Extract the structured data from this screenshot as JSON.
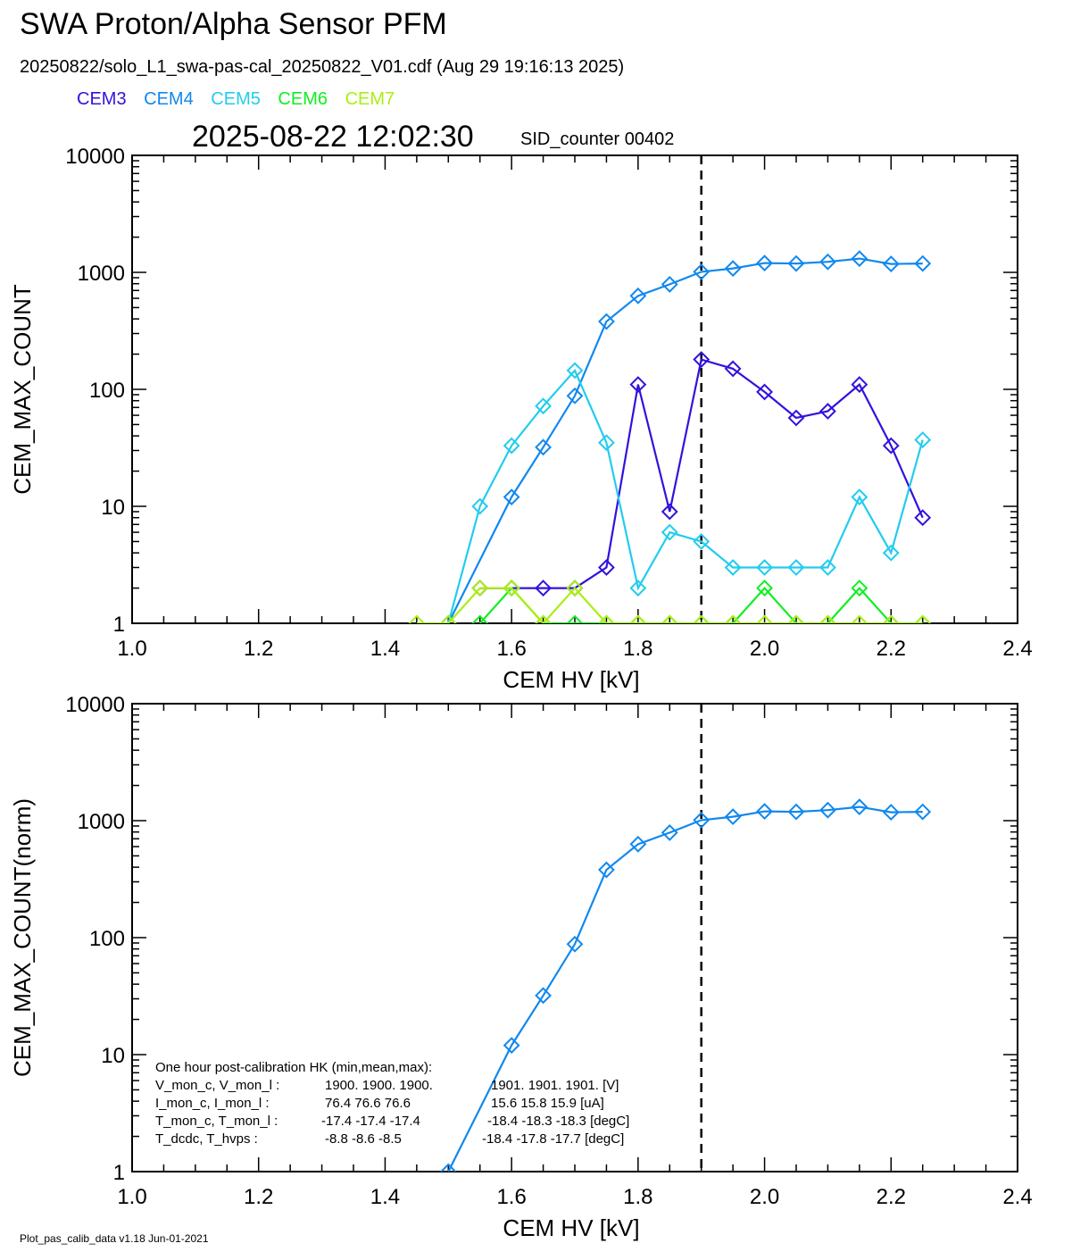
{
  "header": {
    "title": "SWA Proton/Alpha Sensor PFM",
    "subtitle": "20250822/solo_L1_swa-pas-cal_20250822_V01.cdf  (Aug 29 19:16:13 2025)",
    "timestamp": "2025-08-22 12:02:30",
    "sid_counter": "SID_counter 00402"
  },
  "legend": [
    {
      "name": "CEM3",
      "color": "#3311dd"
    },
    {
      "name": "CEM4",
      "color": "#1188ee"
    },
    {
      "name": "CEM5",
      "color": "#22ccee"
    },
    {
      "name": "CEM6",
      "color": "#11ee22"
    },
    {
      "name": "CEM7",
      "color": "#aaee11"
    }
  ],
  "hk_box": {
    "title": "One hour post-calibration HK (min,mean,max):",
    "rows": [
      {
        "label": "V_mon_c, V_mon_l :",
        "c": "1900.  1900.  1900.",
        "l": "1901.  1901.  1901. [V]"
      },
      {
        "label": "I_mon_c,  I_mon_l :",
        "c": "76.4   76.6   76.6",
        "l": "15.6   15.8   15.9  [uA]"
      },
      {
        "label": "T_mon_c, T_mon_l :",
        "c": "-17.4  -17.4  -17.4",
        "l": "-18.4  -18.3  -18.3  [degC]"
      },
      {
        "label": "T_dcdc,    T_hvps :",
        "c": "-8.8   -8.6   -8.5",
        "l": "-18.4  -17.8  -17.7  [degC]"
      }
    ]
  },
  "footer": "Plot_pas_calib_data v1.18 Jun-01-2021",
  "chart_data": [
    {
      "type": "line",
      "xlabel": "CEM HV [kV]",
      "ylabel": "CEM_MAX_COUNT",
      "xlim": [
        1.0,
        2.4
      ],
      "ylim": [
        1,
        10000
      ],
      "yscale": "log",
      "x_ticks": [
        "1.0",
        "1.2",
        "1.4",
        "1.6",
        "1.8",
        "2.0",
        "2.2",
        "2.4"
      ],
      "y_ticks": [
        "1",
        "10",
        "100",
        "1000",
        "10000"
      ],
      "vline": 1.9,
      "marker": "diamond",
      "series": [
        {
          "name": "CEM3",
          "color": "#3311dd",
          "x": [
            1.55,
            1.6,
            1.65,
            1.7,
            1.75,
            1.8,
            1.85,
            1.9,
            1.95,
            2.0,
            2.05,
            2.1,
            2.15,
            2.2,
            2.25
          ],
          "y": [
            2,
            2,
            2,
            2,
            3,
            110,
            9,
            180,
            150,
            95,
            57,
            65,
            110,
            33,
            8
          ]
        },
        {
          "name": "CEM4",
          "color": "#1188ee",
          "x": [
            1.5,
            1.6,
            1.65,
            1.7,
            1.75,
            1.8,
            1.85,
            1.9,
            1.95,
            2.0,
            2.05,
            2.1,
            2.15,
            2.2,
            2.25
          ],
          "y": [
            1,
            12,
            32,
            88,
            380,
            630,
            790,
            1010,
            1080,
            1200,
            1190,
            1230,
            1310,
            1180,
            1190
          ]
        },
        {
          "name": "CEM5",
          "color": "#22ccee",
          "x": [
            1.5,
            1.55,
            1.6,
            1.65,
            1.7,
            1.75,
            1.8,
            1.85,
            1.9,
            1.95,
            2.0,
            2.05,
            2.1,
            2.15,
            2.2,
            2.25
          ],
          "y": [
            1,
            10,
            33,
            72,
            145,
            35,
            2,
            6,
            5,
            3,
            3,
            3,
            3,
            12,
            4,
            37
          ]
        },
        {
          "name": "CEM6",
          "color": "#11ee22",
          "x": [
            1.55,
            1.6,
            1.65,
            1.7,
            1.75,
            1.8,
            1.85,
            1.9,
            1.95,
            2.0,
            2.05,
            2.1,
            2.15,
            2.2,
            2.25
          ],
          "y": [
            1,
            2,
            1,
            1,
            1,
            1,
            1,
            1,
            1,
            2,
            1,
            1,
            2,
            1,
            1
          ]
        },
        {
          "name": "CEM7",
          "color": "#aaee11",
          "x": [
            1.45,
            1.5,
            1.55,
            1.6,
            1.65,
            1.7,
            1.75,
            1.8,
            1.85,
            1.9,
            1.95,
            2.0,
            2.05,
            2.1,
            2.15,
            2.2,
            2.25
          ],
          "y": [
            1,
            1,
            2,
            2,
            1,
            2,
            1,
            1,
            1,
            1,
            1,
            1,
            1,
            1,
            1,
            1,
            1
          ]
        }
      ]
    },
    {
      "type": "line",
      "xlabel": "CEM HV [kV]",
      "ylabel": "CEM_MAX_COUNT(norm)",
      "xlim": [
        1.0,
        2.4
      ],
      "ylim": [
        1,
        10000
      ],
      "yscale": "log",
      "x_ticks": [
        "1.0",
        "1.2",
        "1.4",
        "1.6",
        "1.8",
        "2.0",
        "2.2",
        "2.4"
      ],
      "y_ticks": [
        "1",
        "10",
        "100",
        "1000",
        "10000"
      ],
      "vline": 1.9,
      "marker": "diamond",
      "series": [
        {
          "name": "CEM4",
          "color": "#1188ee",
          "x": [
            1.5,
            1.6,
            1.65,
            1.7,
            1.75,
            1.8,
            1.85,
            1.9,
            1.95,
            2.0,
            2.05,
            2.1,
            2.15,
            2.2,
            2.25
          ],
          "y": [
            1,
            12,
            32,
            88,
            380,
            630,
            790,
            1010,
            1080,
            1200,
            1190,
            1230,
            1310,
            1180,
            1190
          ]
        }
      ]
    }
  ]
}
